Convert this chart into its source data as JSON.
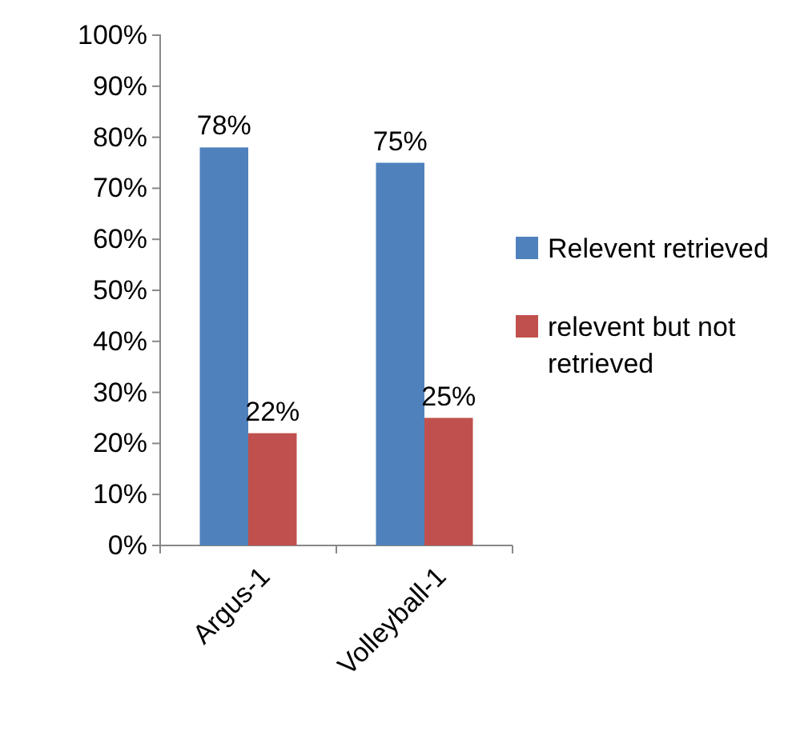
{
  "chart_data": {
    "type": "bar",
    "categories": [
      "Argus-1",
      "Volleyball-1"
    ],
    "series": [
      {
        "name": "Relevent retrieved",
        "color": "#4f81bd",
        "values": [
          78,
          75
        ],
        "value_labels": [
          "78%",
          "75%"
        ]
      },
      {
        "name": "relevent but not retrieved",
        "color": "#c0504d",
        "values": [
          22,
          25
        ],
        "value_labels": [
          "22%",
          "25%"
        ]
      }
    ],
    "ylim": [
      0,
      100
    ],
    "yticks": [
      {
        "value": 0,
        "label": "0%"
      },
      {
        "value": 10,
        "label": "10%"
      },
      {
        "value": 20,
        "label": "20%"
      },
      {
        "value": 30,
        "label": "30%"
      },
      {
        "value": 40,
        "label": "40%"
      },
      {
        "value": 50,
        "label": "50%"
      },
      {
        "value": 60,
        "label": "60%"
      },
      {
        "value": 70,
        "label": "70%"
      },
      {
        "value": 80,
        "label": "80%"
      },
      {
        "value": 90,
        "label": "90%"
      },
      {
        "value": 100,
        "label": "100%"
      }
    ],
    "grid": false,
    "legend": "right"
  }
}
